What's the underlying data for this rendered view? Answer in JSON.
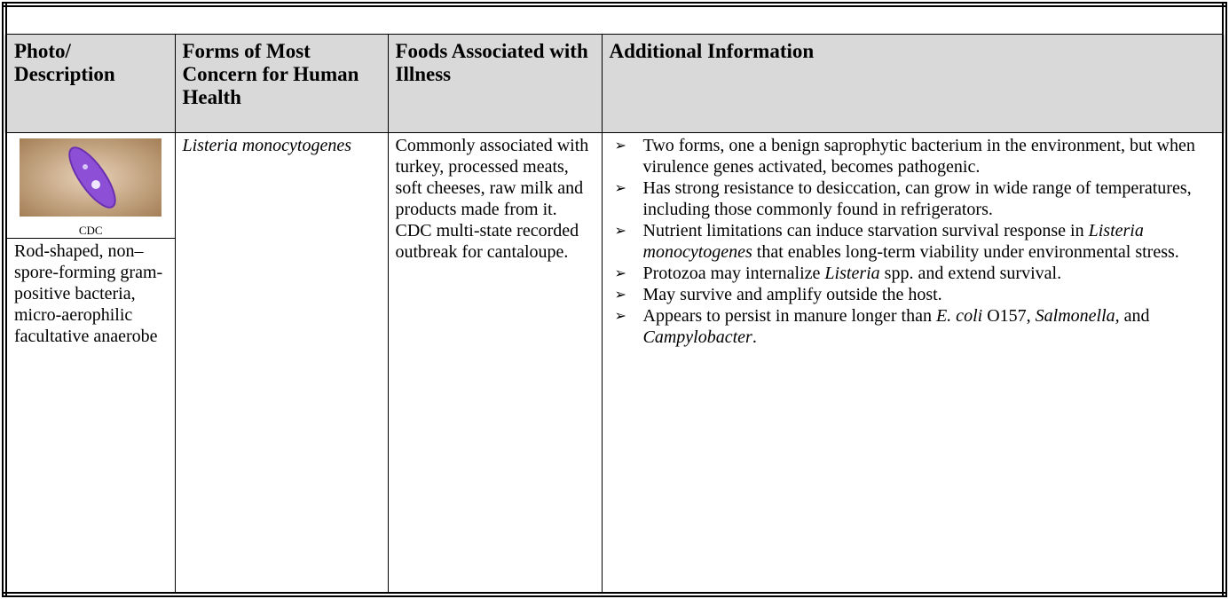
{
  "table": {
    "headers": [
      "Photo/ Description",
      "Forms of Most Concern for Human Health",
      "Foods Associated with Illness",
      "Additional Information"
    ],
    "photo_caption": "CDC",
    "description": "Rod-shaped, non–spore-forming gram-positive bacteria, micro-aerophilic facultative anaerobe",
    "form": "Listeria monocytogenes",
    "foods": "Commonly associated with turkey, processed meats, soft cheeses, raw milk and products made from it. CDC multi-state recorded outbreak for cantaloupe.",
    "additional_info": [
      [
        {
          "text": "Two forms, one a benign saprophytic bacterium in the environment, but when virulence genes activated, becomes pathogenic.",
          "italic": false
        }
      ],
      [
        {
          "text": "Has strong resistance to desiccation, can grow in wide range of temperatures, including those commonly found in refrigerators.",
          "italic": false
        }
      ],
      [
        {
          "text": "Nutrient limitations can induce starvation survival response in ",
          "italic": false
        },
        {
          "text": "Listeria monocytogenes",
          "italic": true
        },
        {
          "text": " that enables long-term viability under environmental stress.",
          "italic": false
        }
      ],
      [
        {
          "text": "Protozoa may internalize ",
          "italic": false
        },
        {
          "text": "Listeria",
          "italic": true
        },
        {
          "text": " spp. and extend survival.",
          "italic": false
        }
      ],
      [
        {
          "text": "May survive and amplify outside the host.",
          "italic": false
        }
      ],
      [
        {
          "text": "Appears to persist in manure longer than ",
          "italic": false
        },
        {
          "text": "E. coli",
          "italic": true
        },
        {
          "text": " O157, ",
          "italic": false
        },
        {
          "text": "Salmonella,",
          "italic": true
        },
        {
          "text": " and ",
          "italic": false
        },
        {
          "text": "Campylobacter",
          "italic": true
        },
        {
          "text": ".",
          "italic": false
        }
      ]
    ]
  }
}
